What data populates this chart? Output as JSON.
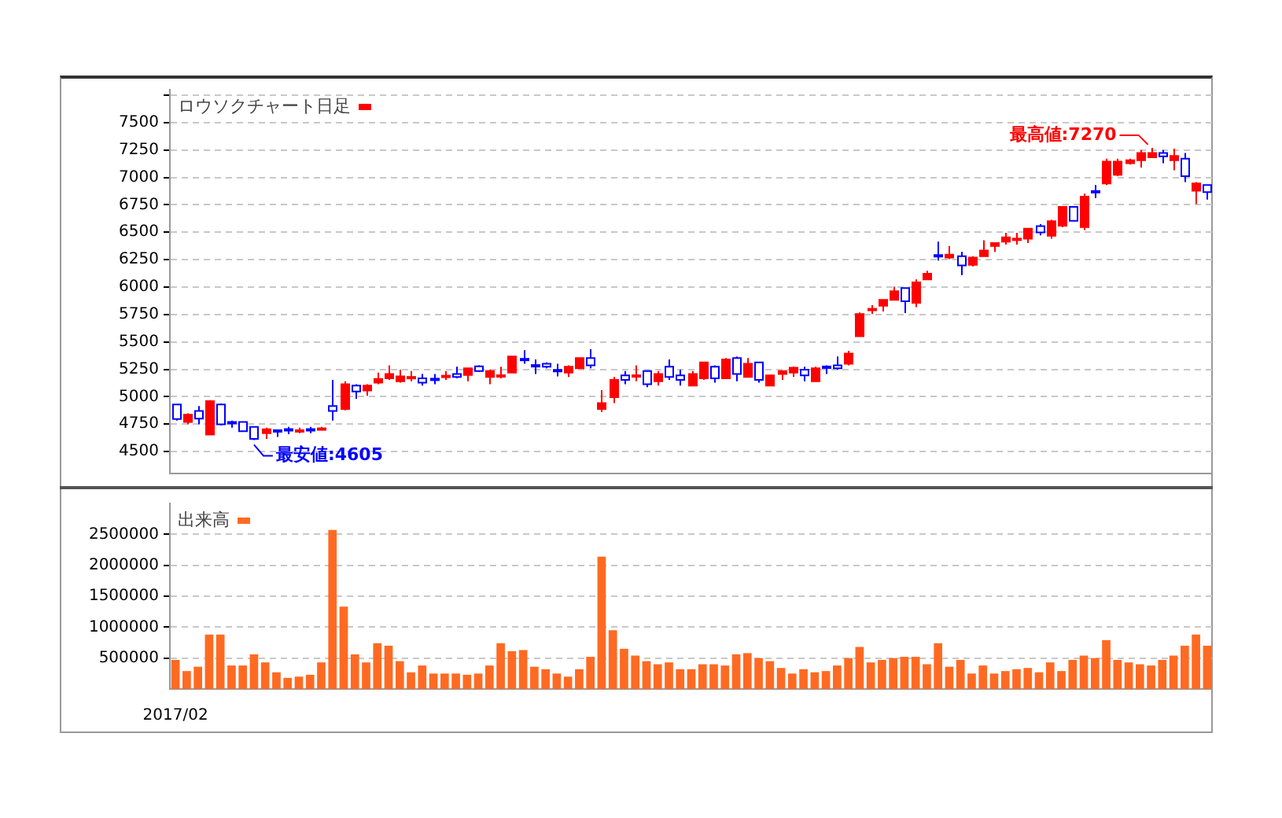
{
  "chart_data": [
    {
      "type": "candlestick",
      "categories": [
        null,
        null,
        null,
        null,
        null,
        null,
        null,
        null,
        null,
        null,
        null,
        null,
        null,
        null,
        null,
        null,
        null,
        null,
        null,
        null,
        null,
        null,
        null,
        null,
        null,
        null,
        null,
        null,
        null,
        null,
        null,
        null,
        null,
        null,
        null,
        null,
        null,
        null,
        null,
        null,
        null,
        null,
        null,
        null,
        null,
        null,
        null,
        null,
        null,
        null,
        null,
        null,
        null,
        null,
        null,
        null,
        null,
        null,
        null,
        null,
        null,
        null,
        null,
        null,
        null,
        null,
        null,
        null,
        null,
        null,
        null,
        null,
        null,
        null,
        null,
        null,
        null,
        null,
        null,
        null,
        null,
        null,
        null,
        null,
        null,
        null,
        null,
        null,
        null,
        null,
        null,
        null,
        null
      ],
      "series": [
        {
          "name": "ロウソクチャート日足",
          "color": "#ff0000",
          "ohlc": [
            [
              4929,
              4929,
              4783,
              4796
            ],
            [
              4770,
              4849,
              4748,
              4836
            ],
            [
              4871,
              4915,
              4748,
              4801
            ],
            [
              4655,
              4969,
              4655,
              4960
            ],
            [
              4929,
              4938,
              4739,
              4748
            ],
            [
              4770,
              4783,
              4717,
              4765
            ],
            [
              4770,
              4770,
              4686,
              4686
            ],
            [
              4725,
              4725,
              4605,
              4615
            ],
            [
              4668,
              4717,
              4615,
              4703
            ],
            [
              4695,
              4695,
              4633,
              4690
            ],
            [
              4705,
              4725,
              4659,
              4700
            ],
            [
              4690,
              4717,
              4668,
              4695
            ],
            [
              4705,
              4725,
              4668,
              4700
            ],
            [
              4708,
              4725,
              4695,
              4712
            ],
            [
              4915,
              5154,
              4783,
              4871
            ],
            [
              4889,
              5141,
              4876,
              5114
            ],
            [
              5101,
              5114,
              4982,
              5048
            ],
            [
              5057,
              5114,
              5008,
              5101
            ],
            [
              5128,
              5220,
              5114,
              5163
            ],
            [
              5167,
              5287,
              5154,
              5207
            ],
            [
              5141,
              5247,
              5128,
              5185
            ],
            [
              5176,
              5234,
              5141,
              5181
            ],
            [
              5167,
              5207,
              5101,
              5128
            ],
            [
              5165,
              5207,
              5114,
              5160
            ],
            [
              5187,
              5234,
              5154,
              5192
            ],
            [
              5207,
              5274,
              5167,
              5181
            ],
            [
              5198,
              5260,
              5141,
              5260
            ],
            [
              5278,
              5287,
              5225,
              5234
            ],
            [
              5181,
              5247,
              5114,
              5234
            ],
            [
              5192,
              5274,
              5167,
              5196
            ],
            [
              5220,
              5366,
              5220,
              5366
            ],
            [
              5346,
              5424,
              5300,
              5340
            ],
            [
              5289,
              5340,
              5207,
              5285
            ],
            [
              5300,
              5313,
              5260,
              5274
            ],
            [
              5245,
              5300,
              5185,
              5240
            ],
            [
              5220,
              5287,
              5181,
              5274
            ],
            [
              5260,
              5353,
              5260,
              5353
            ],
            [
              5353,
              5433,
              5260,
              5287
            ],
            [
              4889,
              5061,
              4862,
              4942
            ],
            [
              4995,
              5181,
              4942,
              5154
            ],
            [
              5194,
              5234,
              5114,
              5154
            ],
            [
              5192,
              5287,
              5141,
              5196
            ],
            [
              5234,
              5234,
              5088,
              5114
            ],
            [
              5141,
              5234,
              5101,
              5207
            ],
            [
              5274,
              5340,
              5154,
              5181
            ],
            [
              5194,
              5247,
              5101,
              5154
            ],
            [
              5101,
              5234,
              5101,
              5207
            ],
            [
              5167,
              5313,
              5154,
              5313
            ],
            [
              5274,
              5287,
              5128,
              5167
            ],
            [
              5167,
              5353,
              5167,
              5340
            ],
            [
              5353,
              5366,
              5141,
              5207
            ],
            [
              5181,
              5353,
              5181,
              5300
            ],
            [
              5313,
              5313,
              5128,
              5154
            ],
            [
              5101,
              5194,
              5101,
              5194
            ],
            [
              5207,
              5234,
              5154,
              5234
            ],
            [
              5220,
              5274,
              5181,
              5265
            ],
            [
              5247,
              5274,
              5141,
              5194
            ],
            [
              5141,
              5274,
              5141,
              5260
            ],
            [
              5276,
              5287,
              5207,
              5272
            ],
            [
              5287,
              5366,
              5247,
              5260
            ],
            [
              5300,
              5419,
              5287,
              5393
            ],
            [
              5552,
              5769,
              5552,
              5755
            ],
            [
              5797,
              5835,
              5755,
              5802
            ],
            [
              5830,
              5883,
              5777,
              5883
            ],
            [
              5883,
              6003,
              5883,
              5963
            ],
            [
              5990,
              5990,
              5764,
              5870
            ],
            [
              5857,
              6069,
              5817,
              6043
            ],
            [
              6069,
              6149,
              6069,
              6122
            ],
            [
              6292,
              6414,
              6241,
              6288
            ],
            [
              6268,
              6374,
              6255,
              6295
            ],
            [
              6281,
              6321,
              6109,
              6197
            ],
            [
              6202,
              6281,
              6188,
              6268
            ],
            [
              6281,
              6427,
              6281,
              6334
            ],
            [
              6374,
              6401,
              6321,
              6401
            ],
            [
              6414,
              6494,
              6387,
              6454
            ],
            [
              6438,
              6494,
              6387,
              6442
            ],
            [
              6440,
              6533,
              6401,
              6533
            ],
            [
              6555,
              6573,
              6471,
              6498
            ],
            [
              6467,
              6613,
              6440,
              6600
            ],
            [
              6560,
              6732,
              6546,
              6732
            ],
            [
              6732,
              6732,
              6604,
              6604
            ],
            [
              6546,
              6851,
              6520,
              6825
            ],
            [
              6876,
              6931,
              6812,
              6871
            ],
            [
              6944,
              7170,
              6931,
              7143
            ],
            [
              7024,
              7170,
              7011,
              7143
            ],
            [
              7130,
              7170,
              7117,
              7156
            ],
            [
              7156,
              7249,
              7090,
              7223
            ],
            [
              7183,
              7270,
              7183,
              7223
            ],
            [
              7223,
              7249,
              7130,
              7192
            ],
            [
              7156,
              7262,
              7064,
              7196
            ],
            [
              7170,
              7223,
              6958,
              7011
            ],
            [
              6878,
              6958,
              6759,
              6944
            ],
            [
              6931,
              6931,
              6798,
              6865
            ]
          ],
          "colors": [
            "#0000ff",
            "#ff0000",
            "#0000ff",
            "#ff0000",
            "#0000ff",
            "#0000ff",
            "#0000ff",
            "#0000ff",
            "#ff0000",
            "#0000ff",
            "#0000ff",
            "#ff0000",
            "#0000ff",
            "#ff0000",
            "#0000ff",
            "#ff0000",
            "#0000ff",
            "#ff0000",
            "#ff0000",
            "#ff0000",
            "#ff0000",
            "#ff0000",
            "#0000ff",
            "#0000ff",
            "#ff0000",
            "#0000ff",
            "#ff0000",
            "#0000ff",
            "#ff0000",
            "#ff0000",
            "#ff0000",
            "#0000ff",
            "#0000ff",
            "#0000ff",
            "#0000ff",
            "#ff0000",
            "#ff0000",
            "#0000ff",
            "#ff0000",
            "#ff0000",
            "#0000ff",
            "#ff0000",
            "#0000ff",
            "#ff0000",
            "#0000ff",
            "#0000ff",
            "#ff0000",
            "#ff0000",
            "#0000ff",
            "#ff0000",
            "#0000ff",
            "#ff0000",
            "#0000ff",
            "#ff0000",
            "#ff0000",
            "#ff0000",
            "#0000ff",
            "#ff0000",
            "#0000ff",
            "#0000ff",
            "#ff0000",
            "#ff0000",
            "#ff0000",
            "#ff0000",
            "#ff0000",
            "#0000ff",
            "#ff0000",
            "#ff0000",
            "#0000ff",
            "#ff0000",
            "#0000ff",
            "#ff0000",
            "#ff0000",
            "#ff0000",
            "#ff0000",
            "#ff0000",
            "#ff0000",
            "#0000ff",
            "#ff0000",
            "#ff0000",
            "#0000ff",
            "#ff0000",
            "#0000ff",
            "#ff0000",
            "#ff0000",
            "#ff0000",
            "#ff0000",
            "#ff0000",
            "#0000ff",
            "#ff0000",
            "#0000ff",
            "#ff0000",
            "#0000ff"
          ]
        }
      ],
      "ylim": [
        4300,
        7800
      ],
      "yticks": [
        4500,
        4750,
        5000,
        5250,
        5500,
        5750,
        6000,
        6250,
        6500,
        6750,
        7000,
        7250,
        7500,
        {
          "value": 7750,
          "label": null
        }
      ],
      "grid": "y",
      "legend": "top left",
      "tick_labels": "y",
      "annotations": [
        "最高値:7270",
        "最安値:4605"
      ]
    },
    {
      "type": "bar",
      "categories": [
        "2017/02",
        null,
        null,
        null,
        null,
        null,
        null,
        null,
        null,
        null,
        null,
        null,
        null,
        null,
        null,
        null,
        null,
        null,
        null,
        null,
        null,
        null,
        null,
        null,
        null,
        null,
        null,
        null,
        null,
        null,
        null,
        null,
        null,
        null,
        null,
        null,
        null,
        null,
        null,
        null,
        null,
        null,
        null,
        null,
        null,
        null,
        null,
        null,
        null,
        null,
        null,
        null,
        null,
        null,
        null,
        null,
        null,
        null,
        null,
        null,
        null,
        null,
        null,
        null,
        null,
        null,
        null,
        null,
        null,
        null,
        null,
        null,
        null,
        null,
        null,
        null,
        null,
        null,
        null,
        null,
        null,
        null,
        null,
        null,
        null,
        null,
        null,
        null,
        null,
        null,
        null,
        null,
        null
      ],
      "series": [
        {
          "name": "出来高",
          "color": "#ff6a22",
          "values": [
            470000,
            290000,
            360000,
            880000,
            880000,
            380000,
            380000,
            560000,
            430000,
            270000,
            180000,
            200000,
            230000,
            430000,
            2570000,
            1330000,
            560000,
            430000,
            740000,
            700000,
            450000,
            270000,
            380000,
            250000,
            250000,
            250000,
            230000,
            250000,
            380000,
            740000,
            610000,
            630000,
            360000,
            320000,
            250000,
            200000,
            320000,
            520000,
            2140000,
            950000,
            650000,
            540000,
            450000,
            400000,
            430000,
            320000,
            320000,
            400000,
            400000,
            380000,
            560000,
            580000,
            500000,
            450000,
            340000,
            250000,
            320000,
            270000,
            290000,
            380000,
            500000,
            680000,
            430000,
            470000,
            500000,
            520000,
            520000,
            400000,
            740000,
            360000,
            470000,
            250000,
            380000,
            250000,
            290000,
            320000,
            340000,
            270000,
            430000,
            290000,
            470000,
            540000,
            500000,
            790000,
            470000,
            430000,
            400000,
            380000,
            470000,
            540000,
            700000,
            880000,
            700000
          ]
        }
      ],
      "ylim": [
        0,
        3000000
      ],
      "yticks": [
        500000,
        1000000,
        1500000,
        2000000,
        2500000
      ],
      "grid": "y",
      "legend": "top left"
    }
  ]
}
